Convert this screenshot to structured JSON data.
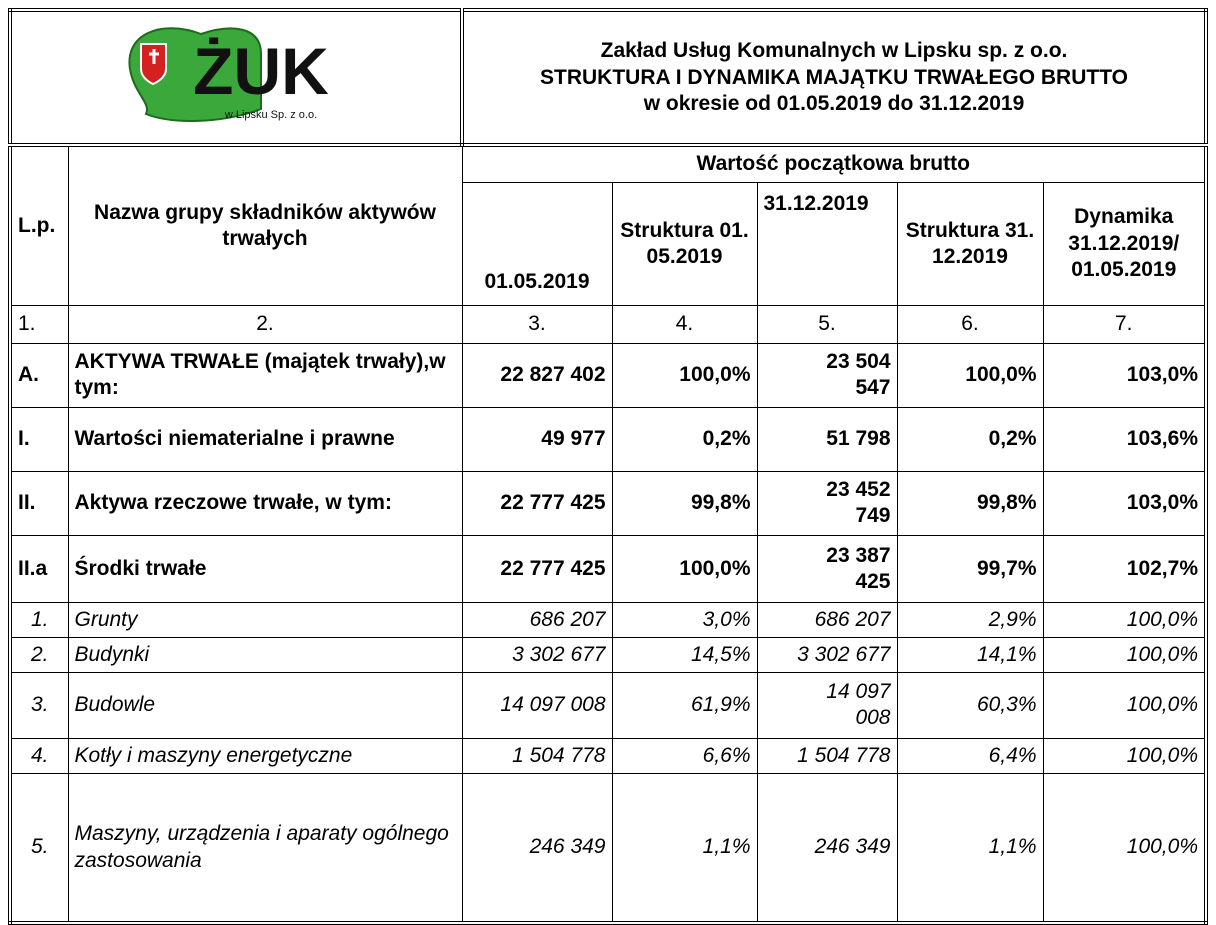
{
  "header": {
    "logo": {
      "name": "ŻUK",
      "subtitle": "w Lipsku Sp. z o.o."
    },
    "title_lines": [
      "Zakład Usług Komunalnych w Lipsku sp. z o.o.",
      "STRUKTURA I DYNAMIKA MAJĄTKU TRWAŁEGO BRUTTO",
      "w okresie od 01.05.2019 do 31.12.2019"
    ]
  },
  "table": {
    "group_header": "Wartość początkowa brutto",
    "columns": [
      "L.p.",
      "Nazwa grupy składników aktywów trwałych",
      "01.05.2019",
      "Struktura 01.05.2019",
      "31.12.2019",
      "Struktura 31.12.2019",
      "Dynamika 31.12.2019/ 01.05.2019"
    ],
    "column_numbers": [
      "1.",
      "2.",
      "3.",
      "4.",
      "5.",
      "6.",
      "7."
    ],
    "rows": [
      [
        "A.",
        "AKTYWA TRWAŁE (majątek trwały),w tym:",
        "22 827 402",
        "100,0%",
        "23 504 547",
        "100,0%",
        "103,0%"
      ],
      [
        "I.",
        "Wartości niematerialne i prawne",
        "49 977",
        "0,2%",
        "51 798",
        "0,2%",
        "103,6%"
      ],
      [
        "II.",
        "Aktywa rzeczowe trwałe, w tym:",
        "22 777 425",
        "99,8%",
        "23 452 749",
        "99,8%",
        "103,0%"
      ],
      [
        "II.a",
        "Środki trwałe",
        "22 777 425",
        "100,0%",
        "23 387 425",
        "99,7%",
        "102,7%"
      ],
      [
        "1.",
        "Grunty",
        "686 207",
        "3,0%",
        "686 207",
        "2,9%",
        "100,0%"
      ],
      [
        "2.",
        "Budynki",
        "3 302 677",
        "14,5%",
        "3 302 677",
        "14,1%",
        "100,0%"
      ],
      [
        "3.",
        "Budowle",
        "14 097 008",
        "61,9%",
        "14 097 008",
        "60,3%",
        "100,0%"
      ],
      [
        "4.",
        "Kotły i maszyny energetyczne",
        "1 504 778",
        "6,6%",
        "1 504 778",
        "6,4%",
        "100,0%"
      ],
      [
        "5.",
        "Maszyny, urządzenia i aparaty ogólnego zastosowania",
        "246 349",
        "1,1%",
        "246 349",
        "1,1%",
        "100,0%"
      ]
    ]
  }
}
